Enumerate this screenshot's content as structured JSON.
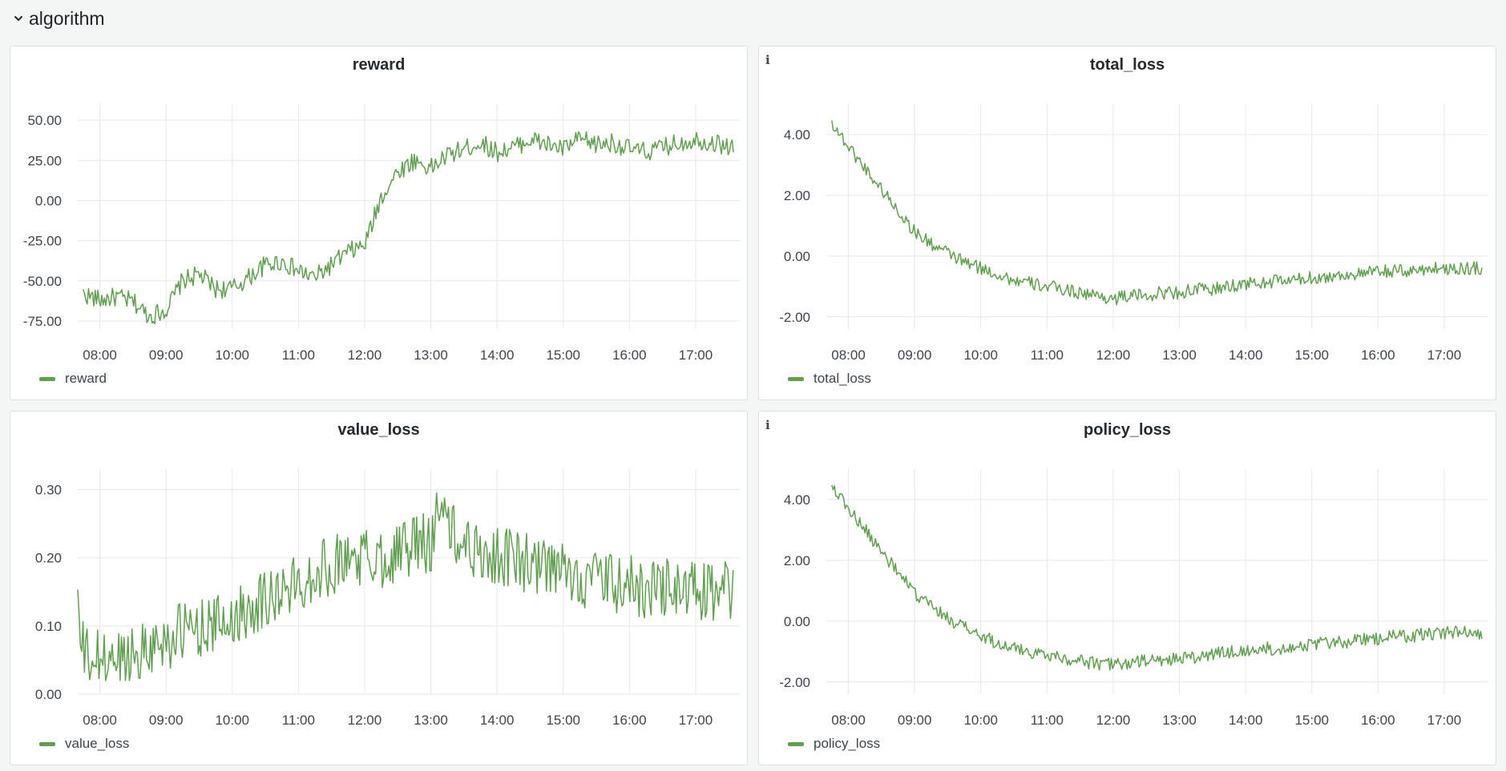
{
  "row": {
    "title": "algorithm"
  },
  "colors": {
    "series": "#629e51",
    "grid": "#e6e7e9",
    "background": "#f4f5f5"
  },
  "icons": {
    "collapse": "chevron-down-icon",
    "info": "info-icon"
  },
  "panels": [
    {
      "id": "reward",
      "title": "reward",
      "info": false,
      "legend": "reward"
    },
    {
      "id": "total_loss",
      "title": "total_loss",
      "info": true,
      "info_glyph": "i",
      "legend": "total_loss"
    },
    {
      "id": "value_loss",
      "title": "value_loss",
      "info": false,
      "legend": "value_loss"
    },
    {
      "id": "policy_loss",
      "title": "policy_loss",
      "info": true,
      "info_glyph": "i",
      "legend": "policy_loss"
    }
  ],
  "chart_data": [
    {
      "type": "line",
      "title": "reward",
      "x_type": "time",
      "x_range": [
        "07:40",
        "17:40"
      ],
      "x_ticks": [
        "08:00",
        "09:00",
        "10:00",
        "11:00",
        "12:00",
        "13:00",
        "14:00",
        "15:00",
        "16:00",
        "17:00"
      ],
      "y_ticks": [
        "50.00",
        "25.00",
        "0.00",
        "-25.00",
        "-50.00",
        "-75.00"
      ],
      "ylim": [
        -80,
        60
      ],
      "grid": true,
      "legend": "bottom-left",
      "series": [
        {
          "name": "reward",
          "color": "#629e51",
          "x": [
            "07:45",
            "08:00",
            "08:15",
            "08:30",
            "08:45",
            "09:00",
            "09:15",
            "09:30",
            "09:45",
            "10:00",
            "10:15",
            "10:30",
            "10:45",
            "11:00",
            "11:15",
            "11:30",
            "11:45",
            "12:00",
            "12:15",
            "12:30",
            "12:45",
            "13:00",
            "13:15",
            "13:30",
            "13:45",
            "14:00",
            "14:15",
            "14:30",
            "14:45",
            "15:00",
            "15:15",
            "15:30",
            "15:45",
            "16:00",
            "16:15",
            "16:30",
            "16:45",
            "17:00",
            "17:15",
            "17:35"
          ],
          "y": [
            -58,
            -62,
            -60,
            -63,
            -72,
            -68,
            -50,
            -46,
            -55,
            -55,
            -48,
            -40,
            -38,
            -44,
            -48,
            -40,
            -32,
            -28,
            2,
            18,
            25,
            20,
            28,
            32,
            36,
            30,
            33,
            38,
            35,
            32,
            38,
            35,
            36,
            32,
            30,
            33,
            36,
            38,
            36,
            33
          ]
        }
      ]
    },
    {
      "type": "line",
      "title": "total_loss",
      "x_type": "time",
      "x_range": [
        "07:40",
        "17:40"
      ],
      "x_ticks": [
        "08:00",
        "09:00",
        "10:00",
        "11:00",
        "12:00",
        "13:00",
        "14:00",
        "15:00",
        "16:00",
        "17:00"
      ],
      "y_ticks": [
        "4.00",
        "2.00",
        "0.00",
        "-2.00"
      ],
      "ylim": [
        -2.4,
        5.0
      ],
      "grid": true,
      "legend": "bottom-left",
      "series": [
        {
          "name": "total_loss",
          "color": "#629e51",
          "x": [
            "07:45",
            "08:00",
            "08:15",
            "08:30",
            "08:45",
            "09:00",
            "09:15",
            "09:30",
            "09:45",
            "10:00",
            "10:15",
            "10:30",
            "10:45",
            "11:00",
            "11:15",
            "11:30",
            "11:45",
            "12:00",
            "12:15",
            "12:30",
            "12:45",
            "13:00",
            "13:15",
            "13:30",
            "13:45",
            "14:00",
            "14:15",
            "14:30",
            "14:45",
            "15:00",
            "15:15",
            "15:30",
            "15:45",
            "16:00",
            "16:15",
            "16:30",
            "16:45",
            "17:00",
            "17:15",
            "17:35"
          ],
          "y": [
            4.4,
            3.6,
            2.9,
            2.2,
            1.5,
            0.8,
            0.4,
            0.1,
            -0.2,
            -0.4,
            -0.6,
            -0.8,
            -0.9,
            -1.0,
            -1.1,
            -1.2,
            -1.3,
            -1.4,
            -1.3,
            -1.3,
            -1.2,
            -1.2,
            -1.1,
            -1.1,
            -1.0,
            -0.9,
            -0.9,
            -0.8,
            -0.8,
            -0.7,
            -0.7,
            -0.6,
            -0.6,
            -0.5,
            -0.5,
            -0.5,
            -0.4,
            -0.4,
            -0.4,
            -0.4
          ]
        }
      ]
    },
    {
      "type": "line",
      "title": "value_loss",
      "x_type": "time",
      "x_range": [
        "07:40",
        "17:40"
      ],
      "x_ticks": [
        "08:00",
        "09:00",
        "10:00",
        "11:00",
        "12:00",
        "13:00",
        "14:00",
        "15:00",
        "16:00",
        "17:00"
      ],
      "y_ticks": [
        "0.30",
        "0.20",
        "0.10",
        "0.00"
      ],
      "ylim": [
        0,
        0.33
      ],
      "grid": true,
      "legend": "bottom-left",
      "series": [
        {
          "name": "value_loss",
          "color": "#629e51",
          "x": [
            "07:40",
            "07:42",
            "07:50",
            "08:00",
            "08:15",
            "08:30",
            "08:45",
            "09:00",
            "09:15",
            "09:30",
            "09:45",
            "10:00",
            "10:15",
            "10:30",
            "10:45",
            "11:00",
            "11:15",
            "11:30",
            "11:45",
            "12:00",
            "12:15",
            "12:30",
            "12:45",
            "13:00",
            "13:10",
            "13:15",
            "13:30",
            "13:45",
            "14:00",
            "14:15",
            "14:30",
            "14:45",
            "15:00",
            "15:15",
            "15:30",
            "15:45",
            "16:00",
            "16:15",
            "16:30",
            "16:45",
            "17:00",
            "17:15",
            "17:35"
          ],
          "y": [
            0.15,
            0.07,
            0.05,
            0.05,
            0.05,
            0.06,
            0.07,
            0.08,
            0.09,
            0.1,
            0.1,
            0.11,
            0.13,
            0.14,
            0.15,
            0.16,
            0.18,
            0.19,
            0.2,
            0.2,
            0.2,
            0.21,
            0.22,
            0.22,
            0.3,
            0.24,
            0.22,
            0.21,
            0.2,
            0.2,
            0.19,
            0.18,
            0.18,
            0.17,
            0.17,
            0.16,
            0.16,
            0.15,
            0.16,
            0.15,
            0.15,
            0.15,
            0.15
          ]
        }
      ]
    },
    {
      "type": "line",
      "title": "policy_loss",
      "x_type": "time",
      "x_range": [
        "07:40",
        "17:40"
      ],
      "x_ticks": [
        "08:00",
        "09:00",
        "10:00",
        "11:00",
        "12:00",
        "13:00",
        "14:00",
        "15:00",
        "16:00",
        "17:00"
      ],
      "y_ticks": [
        "4.00",
        "2.00",
        "0.00",
        "-2.00"
      ],
      "ylim": [
        -2.4,
        5.0
      ],
      "grid": true,
      "legend": "bottom-left",
      "series": [
        {
          "name": "policy_loss",
          "color": "#629e51",
          "x": [
            "07:45",
            "08:00",
            "08:15",
            "08:30",
            "08:45",
            "09:00",
            "09:15",
            "09:30",
            "09:45",
            "10:00",
            "10:15",
            "10:30",
            "10:45",
            "11:00",
            "11:15",
            "11:30",
            "11:45",
            "12:00",
            "12:15",
            "12:30",
            "12:45",
            "13:00",
            "13:15",
            "13:30",
            "13:45",
            "14:00",
            "14:15",
            "14:30",
            "14:45",
            "15:00",
            "15:15",
            "15:30",
            "15:45",
            "16:00",
            "16:15",
            "16:30",
            "16:45",
            "17:00",
            "17:15",
            "17:35"
          ],
          "y": [
            4.5,
            3.7,
            3.0,
            2.3,
            1.6,
            0.9,
            0.5,
            0.1,
            -0.2,
            -0.5,
            -0.7,
            -0.9,
            -1.0,
            -1.1,
            -1.2,
            -1.3,
            -1.4,
            -1.4,
            -1.4,
            -1.3,
            -1.3,
            -1.2,
            -1.2,
            -1.1,
            -1.0,
            -1.0,
            -0.9,
            -0.9,
            -0.8,
            -0.8,
            -0.7,
            -0.7,
            -0.6,
            -0.6,
            -0.5,
            -0.5,
            -0.4,
            -0.4,
            -0.3,
            -0.4
          ]
        }
      ]
    }
  ]
}
